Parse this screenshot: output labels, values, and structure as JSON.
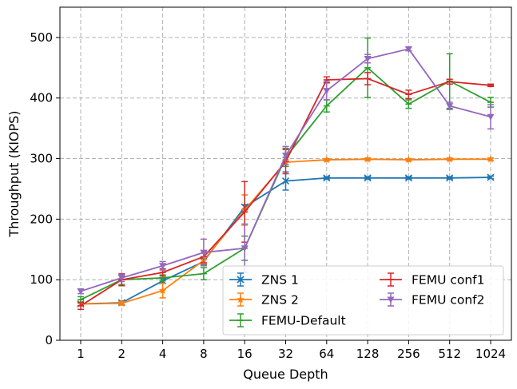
{
  "chart_data": {
    "type": "line",
    "xlabel": "Queue Depth",
    "ylabel": "Throughput (KIOPS)",
    "categories": [
      "1",
      "2",
      "4",
      "8",
      "16",
      "32",
      "64",
      "128",
      "256",
      "512",
      "1024"
    ],
    "ylim": [
      0,
      550
    ],
    "yticks": [
      0,
      100,
      200,
      300,
      400,
      500
    ],
    "grid": true,
    "legend_position": "lower-right",
    "series": [
      {
        "name": "ZNS 1",
        "color": "#1f77b4",
        "marker": "x",
        "values": [
          60,
          62,
          98,
          130,
          220,
          263,
          268,
          268,
          268,
          268,
          269
        ],
        "errors": [
          3,
          3,
          4,
          5,
          4,
          15,
          2,
          2,
          2,
          2,
          2
        ]
      },
      {
        "name": "ZNS 2",
        "color": "#ff7f0e",
        "marker": "star",
        "values": [
          60,
          61,
          82,
          132,
          215,
          294,
          298,
          299,
          298,
          299,
          299
        ],
        "errors": [
          3,
          3,
          12,
          6,
          25,
          4,
          2,
          2,
          2,
          2,
          2
        ]
      },
      {
        "name": "FEMU-Default",
        "color": "#2ca02c",
        "marker": "cap",
        "values": [
          67,
          100,
          103,
          110,
          152,
          302,
          387,
          450,
          390,
          428,
          393
        ],
        "errors": [
          5,
          8,
          5,
          10,
          20,
          15,
          10,
          49,
          7,
          45,
          8
        ]
      },
      {
        "name": "FEMU conf1",
        "color": "#d62728",
        "marker": "cap",
        "values": [
          57,
          100,
          112,
          138,
          212,
          295,
          430,
          432,
          406,
          427,
          421
        ],
        "errors": [
          6,
          10,
          6,
          10,
          50,
          20,
          5,
          10,
          7,
          4,
          2
        ]
      },
      {
        "name": "FEMU conf2",
        "color": "#9467bd",
        "marker": "triangle-down",
        "values": [
          81,
          103,
          123,
          145,
          152,
          305,
          412,
          465,
          481,
          387,
          369
        ],
        "errors": [
          4,
          6,
          7,
          22,
          40,
          15,
          15,
          7,
          3,
          6,
          20
        ]
      }
    ]
  }
}
